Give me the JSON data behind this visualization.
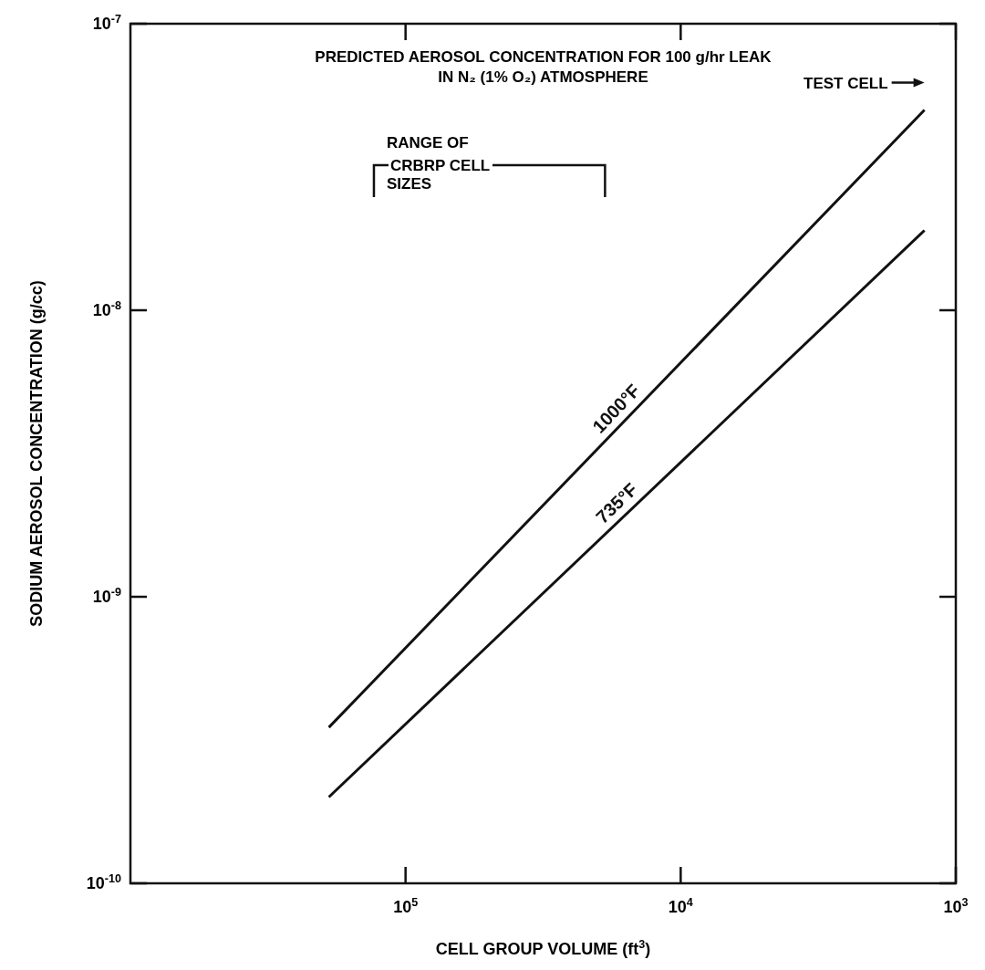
{
  "chart_data": {
    "type": "line",
    "title": "PREDICTED AEROSOL CONCENTRATION FOR 100 g/hr LEAK",
    "subtitle": "IN N₂ (1% O₂) ATMOSPHERE",
    "xlabel": "CELL GROUP VOLUME (ft$^{3}$)",
    "ylabel": "SODIUM AEROSOL CONCENTRATION (g/cc)",
    "log": "xy",
    "xlim": [
      1000000,
      1000
    ],
    "ylim": [
      1e-10,
      1e-07
    ],
    "xticks": [
      {
        "value": 100000,
        "label": "10$^{5}$"
      },
      {
        "value": 10000,
        "label": "10$^{4}$"
      },
      {
        "value": 1000,
        "label": "10$^{3}$"
      }
    ],
    "yticks": [
      {
        "value": 1e-10,
        "label": "10$^{-10}$"
      },
      {
        "value": 1e-09,
        "label": "10$^{-9}$"
      },
      {
        "value": 1e-08,
        "label": "10$^{-8}$"
      },
      {
        "value": 1e-07,
        "label": "10$^{-7}$"
      }
    ],
    "x": [
      190000,
      1300
    ],
    "series": [
      {
        "name": "1000°F",
        "color": "#111111",
        "values": [
          3.5e-10,
          5e-08
        ]
      },
      {
        "name": "735°F",
        "color": "#111111",
        "values": [
          2e-10,
          1.9e-08
        ]
      }
    ],
    "annotations": [
      "RANGE OF CRBRP CELL SIZES",
      "TEST CELL"
    ],
    "marker": "none",
    "line_style": "solid",
    "grid": false
  }
}
